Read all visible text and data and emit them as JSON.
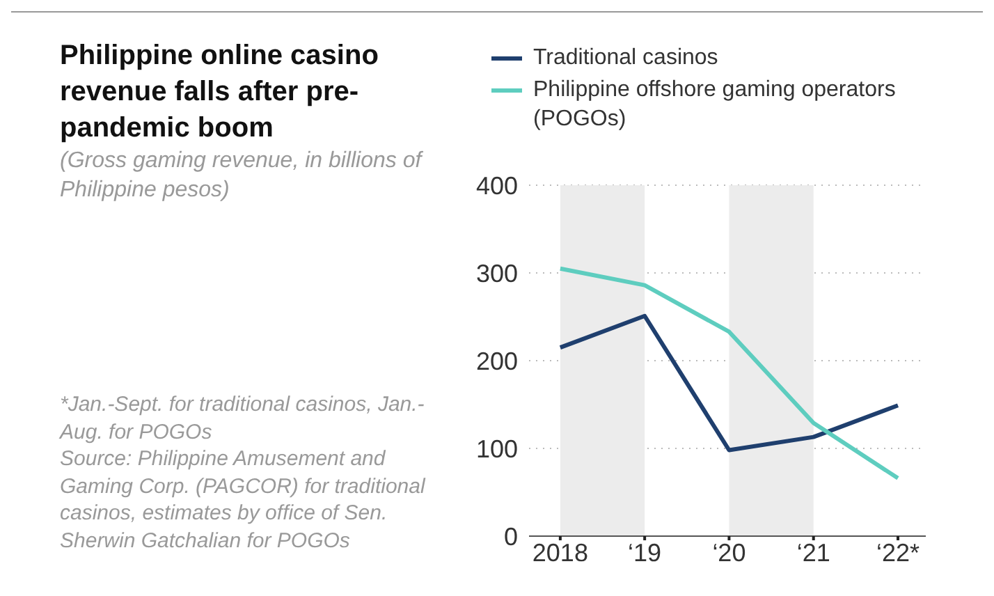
{
  "chart_data": {
    "type": "line",
    "title": "Philippine online casino revenue falls after pre-pandemic boom",
    "subtitle": "(Gross gaming revenue, in billions of Philippine pesos)",
    "categories": [
      "2018",
      "‘19",
      "‘20",
      "‘21",
      "‘22*"
    ],
    "series": [
      {
        "name": "Traditional casinos",
        "color": "#1f3f6e",
        "values": [
          215,
          251,
          98,
          113,
          149
        ]
      },
      {
        "name": "Philippine offshore gaming operators (POGOs)",
        "color": "#5ecdbf",
        "values": [
          305,
          286,
          233,
          129,
          66
        ]
      }
    ],
    "ylim": [
      0,
      400
    ],
    "yticks": [
      0,
      100,
      200,
      300,
      400
    ],
    "bands": [
      {
        "axis": "x",
        "from": "2018",
        "to": "‘19",
        "color": "#ececec"
      },
      {
        "axis": "x",
        "from": "‘20",
        "to": "‘21",
        "color": "#ececec"
      }
    ],
    "grid": "y",
    "legend": "top",
    "marker": "none",
    "line_style": "solid",
    "annotations": [
      "*Jan.-Sept. for traditional casinos, Jan.-Aug. for POGOs",
      "Source: Philippine Amusement and Gaming Corp. (PAGCOR) for traditional casinos, estimates by office of Sen. Sherwin Gatchalian for POGOs"
    ]
  }
}
